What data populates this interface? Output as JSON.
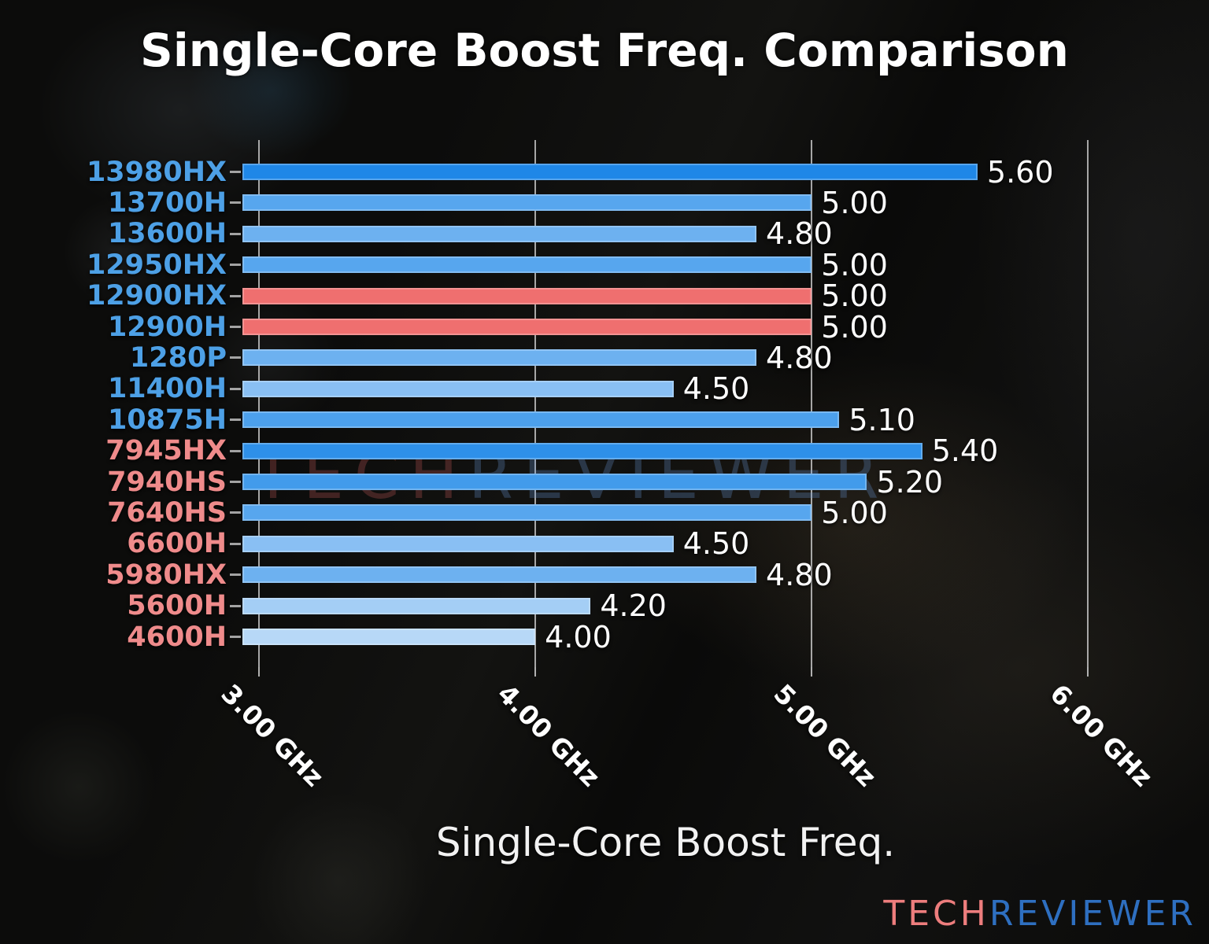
{
  "title": "Single-Core Boost Freq. Comparison",
  "x_axis_title": "Single-Core Boost Freq.",
  "watermark": {
    "tech": "TECH",
    "reviewer": "REVIEWER"
  },
  "logo": {
    "tech": "TECH",
    "reviewer": "REVIEWER",
    "tech_color": "#ed7d7d",
    "reviewer_color": "#2e6fc0"
  },
  "colors": {
    "intel_label": "#4da0e6",
    "amd_label": "#ef8b8b",
    "highlight_bar": "#ef6f6f",
    "value_text": "#ffffff",
    "gridline": "#cdcdcd"
  },
  "chart_data": {
    "type": "bar",
    "orientation": "horizontal",
    "title": "Single-Core Boost Freq. Comparison",
    "xlabel": "Single-Core Boost Freq.",
    "unit": "GHz",
    "xlim": [
      2.94,
      6.15
    ],
    "grid": true,
    "x_ticks": [
      {
        "value": 3.0,
        "label": "3.00 GHz"
      },
      {
        "value": 4.0,
        "label": "4.00 GHz"
      },
      {
        "value": 5.0,
        "label": "5.00 GHz"
      },
      {
        "value": 6.0,
        "label": "6.00 GHz"
      }
    ],
    "bars": [
      {
        "category": "13980HX",
        "value": 5.6,
        "value_label": "5.60",
        "bar_color": "#1f87e7",
        "vendor": "intel"
      },
      {
        "category": "13700H",
        "value": 5.0,
        "value_label": "5.00",
        "bar_color": "#57a6ee",
        "vendor": "intel"
      },
      {
        "category": "13600H",
        "value": 4.8,
        "value_label": "4.80",
        "bar_color": "#6db1f0",
        "vendor": "intel"
      },
      {
        "category": "12950HX",
        "value": 5.0,
        "value_label": "5.00",
        "bar_color": "#57a6ee",
        "vendor": "intel"
      },
      {
        "category": "12900HX",
        "value": 5.0,
        "value_label": "5.00",
        "bar_color": "#ef6f6f",
        "vendor": "intel",
        "highlight": true
      },
      {
        "category": "12900H",
        "value": 5.0,
        "value_label": "5.00",
        "bar_color": "#ef6f6f",
        "vendor": "intel",
        "highlight": true
      },
      {
        "category": "1280P",
        "value": 4.8,
        "value_label": "4.80",
        "bar_color": "#6db1f0",
        "vendor": "intel"
      },
      {
        "category": "11400H",
        "value": 4.5,
        "value_label": "4.50",
        "bar_color": "#89bff3",
        "vendor": "intel"
      },
      {
        "category": "10875H",
        "value": 5.1,
        "value_label": "5.10",
        "bar_color": "#4ca0ec",
        "vendor": "intel"
      },
      {
        "category": "7945HX",
        "value": 5.4,
        "value_label": "5.40",
        "bar_color": "#2e90e9",
        "vendor": "amd"
      },
      {
        "category": "7940HS",
        "value": 5.2,
        "value_label": "5.20",
        "bar_color": "#429beb",
        "vendor": "amd"
      },
      {
        "category": "7640HS",
        "value": 5.0,
        "value_label": "5.00",
        "bar_color": "#57a6ee",
        "vendor": "amd"
      },
      {
        "category": "6600H",
        "value": 4.5,
        "value_label": "4.50",
        "bar_color": "#89bff3",
        "vendor": "amd"
      },
      {
        "category": "5980HX",
        "value": 4.8,
        "value_label": "4.80",
        "bar_color": "#6db1f0",
        "vendor": "amd"
      },
      {
        "category": "5600H",
        "value": 4.2,
        "value_label": "4.20",
        "bar_color": "#a4cef5",
        "vendor": "amd"
      },
      {
        "category": "4600H",
        "value": 4.0,
        "value_label": "4.00",
        "bar_color": "#b7d8f7",
        "vendor": "amd"
      }
    ]
  }
}
